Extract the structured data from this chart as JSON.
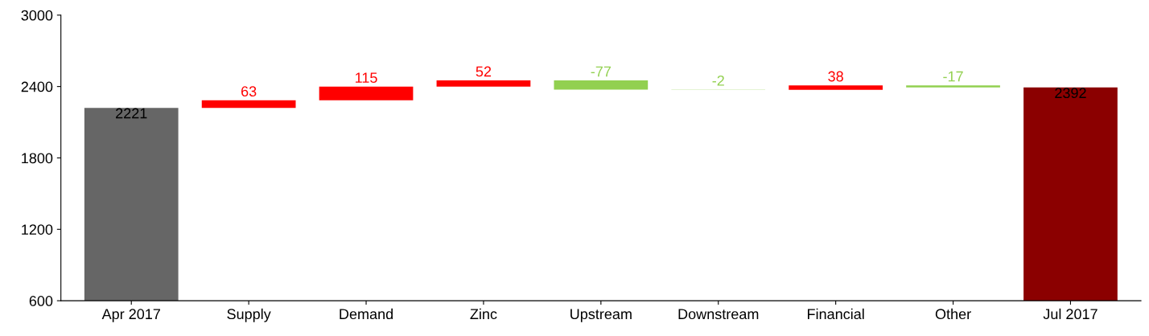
{
  "chart_data": {
    "type": "bar",
    "categories": [
      "Apr 2017",
      "Supply",
      "Demand",
      "Zinc",
      "Upstream",
      "Downstream",
      "Financial",
      "Other",
      "Jul 2017"
    ],
    "values": [
      2221,
      63,
      115,
      52,
      -77,
      -2,
      38,
      -17,
      2392
    ],
    "base": [
      0,
      2221,
      2284,
      2399,
      2451,
      2374,
      2372,
      2410,
      0
    ],
    "colors": [
      "#666666",
      "#ff0000",
      "#ff0000",
      "#ff0000",
      "#92d050",
      "#92d050",
      "#ff0000",
      "#92d050",
      "#8b0000"
    ],
    "data_labels": true,
    "ylim": [
      600,
      3000
    ],
    "yticks": [
      600,
      1200,
      1800,
      2400,
      3000
    ],
    "grid": false,
    "legend": false
  }
}
